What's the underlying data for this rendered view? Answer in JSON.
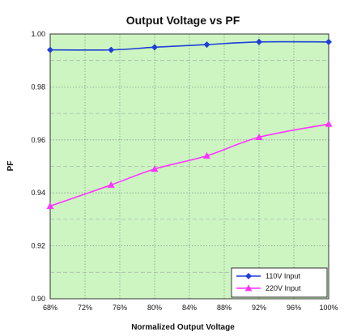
{
  "chart_data": {
    "type": "line",
    "title": "Output Voltage vs PF",
    "xlabel": "Normalized Output Voltage",
    "ylabel": "PF",
    "x_ticks": [
      "68%",
      "72%",
      "76%",
      "80%",
      "84%",
      "88%",
      "92%",
      "96%",
      "100%"
    ],
    "y_ticks": [
      "0.90",
      "0.92",
      "0.94",
      "0.96",
      "0.98",
      "1.00"
    ],
    "xlim": [
      68,
      100
    ],
    "ylim": [
      0.9,
      1.0
    ],
    "grid": true,
    "legend_position": "bottom-right",
    "background_color": "#ccf5c2",
    "series": [
      {
        "name": "110V Input",
        "color": "#1f3fd6",
        "marker": "diamond",
        "x": [
          68,
          75,
          80,
          86,
          92,
          100
        ],
        "y": [
          0.994,
          0.994,
          0.995,
          0.996,
          0.997,
          0.997
        ]
      },
      {
        "name": "220V Input",
        "color": "#ff33ff",
        "marker": "triangle",
        "x": [
          68,
          75,
          80,
          86,
          92,
          100
        ],
        "y": [
          0.935,
          0.943,
          0.949,
          0.954,
          0.961,
          0.966
        ]
      }
    ]
  }
}
